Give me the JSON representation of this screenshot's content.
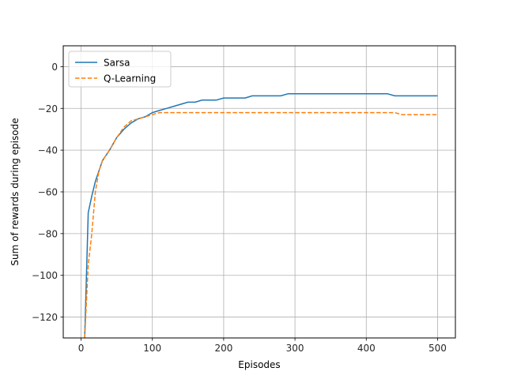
{
  "chart_data": {
    "type": "line",
    "title": "",
    "xlabel": "Episodes",
    "ylabel": "Sum of rewards during episode",
    "xlim": [
      -25,
      525
    ],
    "ylim": [
      -130,
      10
    ],
    "xticks": [
      0,
      100,
      200,
      300,
      400,
      500
    ],
    "yticks": [
      -120,
      -100,
      -80,
      -60,
      -40,
      -20,
      0
    ],
    "grid": true,
    "legend_position": "top-left",
    "series": [
      {
        "name": "Sarsa",
        "color": "#1f77b4",
        "style": "solid",
        "x": [
          5,
          10,
          15,
          20,
          25,
          30,
          40,
          50,
          60,
          70,
          80,
          90,
          100,
          110,
          120,
          130,
          140,
          150,
          160,
          170,
          180,
          190,
          200,
          210,
          220,
          230,
          240,
          250,
          260,
          270,
          280,
          290,
          300,
          310,
          320,
          330,
          340,
          350,
          360,
          370,
          380,
          390,
          400,
          410,
          420,
          430,
          440,
          450,
          460,
          470,
          480,
          490,
          500
        ],
        "y": [
          -130,
          -70,
          -62,
          -55,
          -50,
          -45,
          -40,
          -34,
          -30,
          -27,
          -25,
          -24,
          -22,
          -21,
          -20,
          -19,
          -18,
          -17,
          -17,
          -16,
          -16,
          -16,
          -15,
          -15,
          -15,
          -15,
          -14,
          -14,
          -14,
          -14,
          -14,
          -13,
          -13,
          -13,
          -13,
          -13,
          -13,
          -13,
          -13,
          -13,
          -13,
          -13,
          -13,
          -13,
          -13,
          -13,
          -14,
          -14,
          -14,
          -14,
          -14,
          -14,
          -14
        ]
      },
      {
        "name": "Q-Learning",
        "color": "#ff7f0e",
        "style": "dashed",
        "x": [
          5,
          10,
          15,
          20,
          25,
          30,
          40,
          50,
          60,
          70,
          80,
          90,
          100,
          110,
          120,
          130,
          140,
          150,
          160,
          170,
          180,
          190,
          200,
          210,
          220,
          230,
          240,
          250,
          260,
          270,
          280,
          290,
          300,
          310,
          320,
          330,
          340,
          350,
          360,
          370,
          380,
          390,
          400,
          410,
          420,
          430,
          440,
          450,
          460,
          470,
          480,
          490,
          500
        ],
        "y": [
          -130,
          -95,
          -80,
          -60,
          -50,
          -45,
          -40,
          -34,
          -29,
          -26,
          -25,
          -24,
          -23,
          -22,
          -22,
          -22,
          -22,
          -22,
          -22,
          -22,
          -22,
          -22,
          -22,
          -22,
          -22,
          -22,
          -22,
          -22,
          -22,
          -22,
          -22,
          -22,
          -22,
          -22,
          -22,
          -22,
          -22,
          -22,
          -22,
          -22,
          -22,
          -22,
          -22,
          -22,
          -22,
          -22,
          -22,
          -23,
          -23,
          -23,
          -23,
          -23,
          -23
        ]
      }
    ]
  }
}
